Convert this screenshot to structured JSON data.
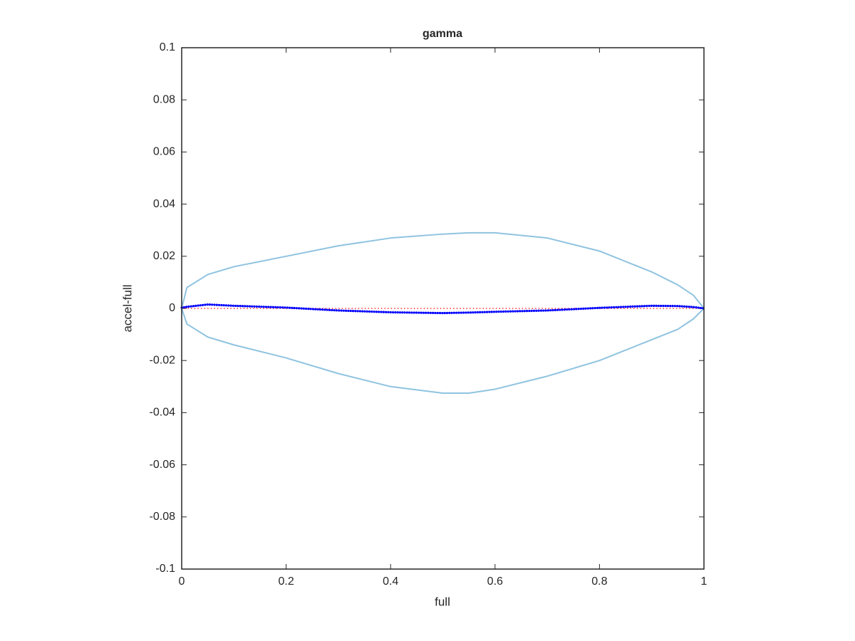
{
  "chart_data": {
    "type": "line",
    "title": "gamma",
    "xlabel": "full",
    "ylabel": "accel-full",
    "x": [
      0,
      0.01,
      0.05,
      0.1,
      0.2,
      0.3,
      0.4,
      0.5,
      0.55,
      0.6,
      0.7,
      0.8,
      0.9,
      0.95,
      0.98,
      1
    ],
    "series": [
      {
        "color": "#8fc3e0",
        "style": "solid",
        "values": [
          0,
          0.008,
          0.013,
          0.016,
          0.02,
          0.024,
          0.027,
          0.0285,
          0.029,
          0.029,
          0.027,
          0.022,
          0.014,
          0.009,
          0.005,
          0
        ]
      },
      {
        "color": "#8fc3e0",
        "style": "solid",
        "values": [
          0,
          -0.006,
          -0.011,
          -0.014,
          -0.019,
          -0.025,
          -0.03,
          -0.0325,
          -0.0325,
          -0.031,
          -0.026,
          -0.02,
          -0.012,
          -0.008,
          -0.004,
          0
        ]
      },
      {
        "color": "#ff0000",
        "style": "dotted",
        "values": [
          0,
          0,
          0,
          0,
          0,
          0,
          0,
          0,
          0,
          0,
          0,
          0,
          0,
          0,
          0,
          0
        ]
      },
      {
        "color": "#0000ff",
        "style": "dots",
        "values": [
          0.0003,
          0.0006,
          0.0015,
          0.001,
          0.0003,
          -0.0008,
          -0.0015,
          -0.0018,
          -0.0016,
          -0.0013,
          -0.0008,
          0.0002,
          0.001,
          0.0009,
          0.0005,
          0
        ]
      }
    ],
    "xlim": [
      0,
      1
    ],
    "ylim": [
      -0.1,
      0.1
    ],
    "xticks": [
      0,
      0.2,
      0.4,
      0.6,
      0.8,
      1
    ],
    "yticks": [
      -0.1,
      -0.08,
      -0.06,
      -0.04,
      -0.02,
      0,
      0.02,
      0.04,
      0.06,
      0.08,
      0.1
    ]
  }
}
